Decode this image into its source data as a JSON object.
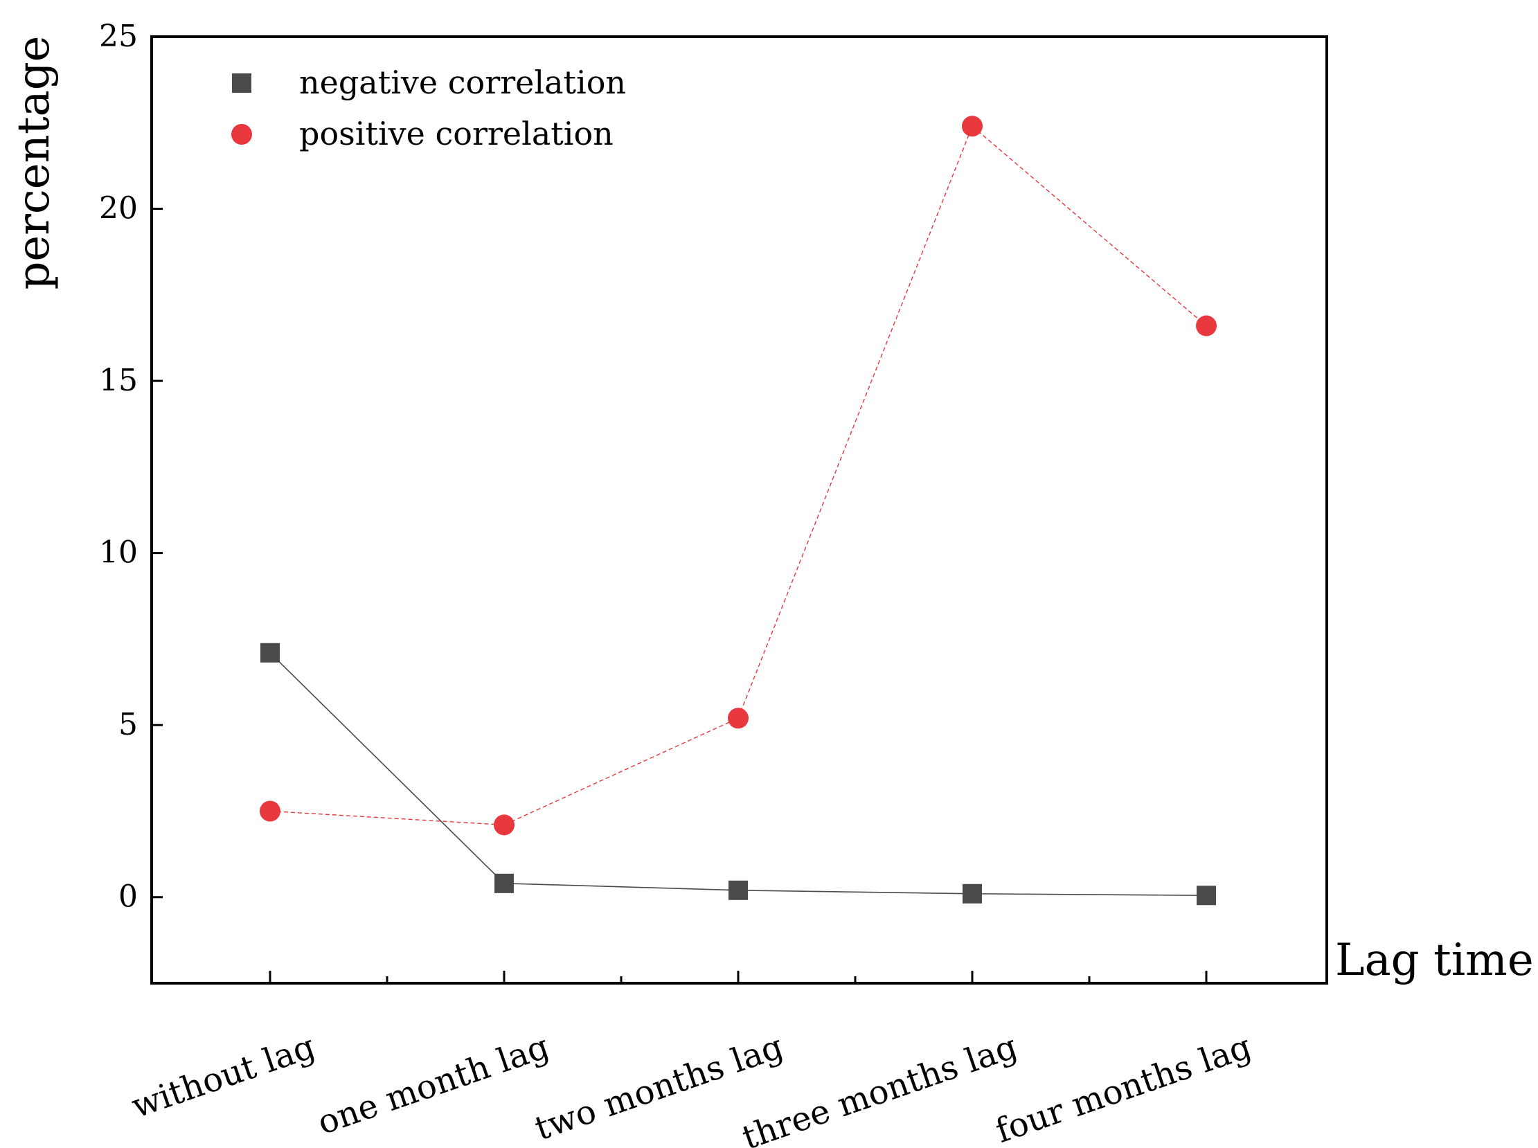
{
  "chart_data": {
    "type": "line",
    "title": "",
    "xlabel": "Lag time",
    "ylabel": "percentage",
    "categories": [
      "without lag",
      "one month lag",
      "two months lag",
      "three months lag",
      "four months lag"
    ],
    "ylim": [
      -2.5,
      25
    ],
    "yticks": [
      0,
      5,
      10,
      15,
      20,
      25
    ],
    "grid": false,
    "legend_position": "top-left",
    "series": [
      {
        "name": "negative correlation",
        "marker": "square",
        "color": "#4a4a4a",
        "values": [
          7.1,
          0.4,
          0.2,
          0.1,
          0.05
        ]
      },
      {
        "name": "positive correlation",
        "marker": "circle",
        "color": "#e8383d",
        "values": [
          2.5,
          2.1,
          5.2,
          22.4,
          16.6
        ]
      }
    ]
  }
}
